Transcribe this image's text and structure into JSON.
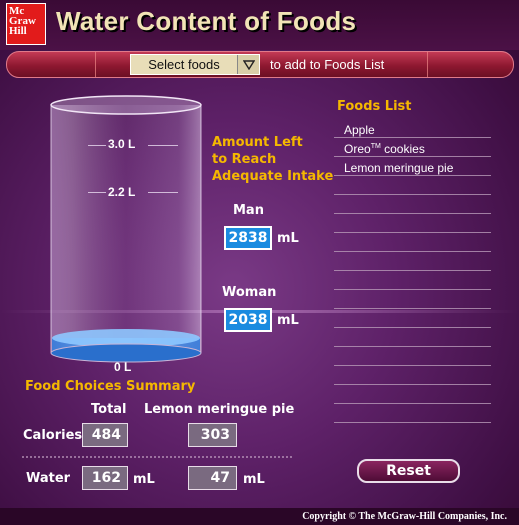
{
  "header": {
    "logo_lines": [
      "Mc",
      "Graw",
      "Hill"
    ],
    "title": "Water Content of Foods"
  },
  "toolbar": {
    "select_label": "Select foods",
    "add_text": "to add to Foods List"
  },
  "cylinder": {
    "scale_top": "3.0 L",
    "scale_mid": "2.2 L",
    "scale_bottom": "0 L"
  },
  "intake": {
    "heading_lines": [
      "Amount Left",
      "to Reach",
      "Adequate Intake"
    ],
    "man_label": "Man",
    "man_value": "2838",
    "woman_label": "Woman",
    "woman_value": "2038",
    "unit": "mL"
  },
  "foods_list": {
    "title": "Foods List",
    "items": [
      {
        "name": "Apple",
        "sup": ""
      },
      {
        "name": "Oreo",
        "sup": "TM",
        "suffix": " cookies"
      },
      {
        "name": "Lemon meringue pie",
        "sup": ""
      }
    ]
  },
  "summary": {
    "title": "Food Choices Summary",
    "col_total": "Total",
    "col_food": "Lemon meringue pie",
    "row_calories": "Calories",
    "row_water": "Water",
    "calories_total": "484",
    "calories_food": "303",
    "water_total": "162",
    "water_food": "47",
    "unit": "mL"
  },
  "reset_label": "Reset",
  "copyright": "Copyright © The McGraw-Hill Companies, Inc.",
  "colors": {
    "accent": "#f5b800",
    "value_box": "#1a8be0",
    "water": "#3d8fe8"
  }
}
